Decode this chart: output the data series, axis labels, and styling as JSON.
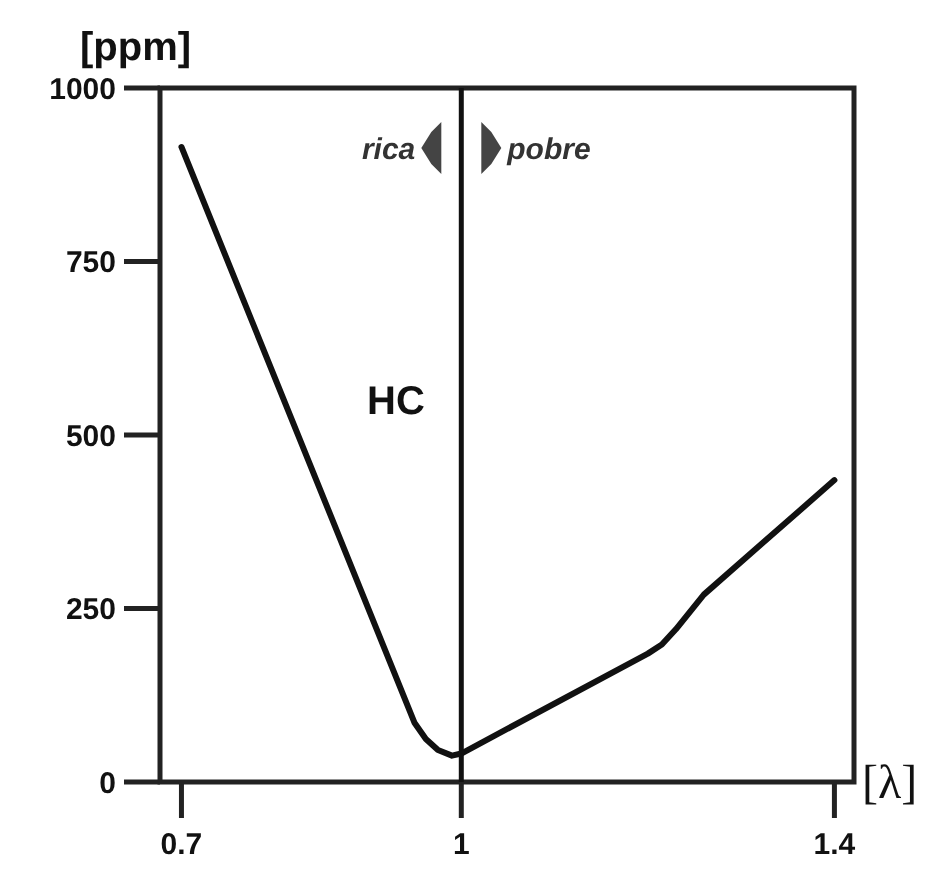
{
  "chart_data": {
    "type": "line",
    "xlabel": "[λ]",
    "ylabel": "[ppm]",
    "x": [
      0.7,
      0.95,
      0.962,
      0.975,
      0.99,
      1.0,
      1.2,
      1.215,
      1.23,
      1.26,
      1.4
    ],
    "series": [
      {
        "color": "#111111",
        "values": [
          915,
          85,
          62,
          46,
          38,
          41,
          185,
          198,
          220,
          270,
          435
        ]
      }
    ],
    "xlim": [
      0.677,
      1.421
    ],
    "xticks": [
      0.7,
      1,
      1.4
    ],
    "ylim": [
      0,
      1000
    ],
    "yticks": [
      0,
      250,
      500,
      750,
      1000
    ],
    "ref_lines": [
      {
        "axis": "x",
        "value": 1,
        "color": "#111111"
      }
    ],
    "annotations": [
      "HC",
      "rica",
      "pobre"
    ],
    "grid": false,
    "marker": "none",
    "line_style": "solid"
  }
}
